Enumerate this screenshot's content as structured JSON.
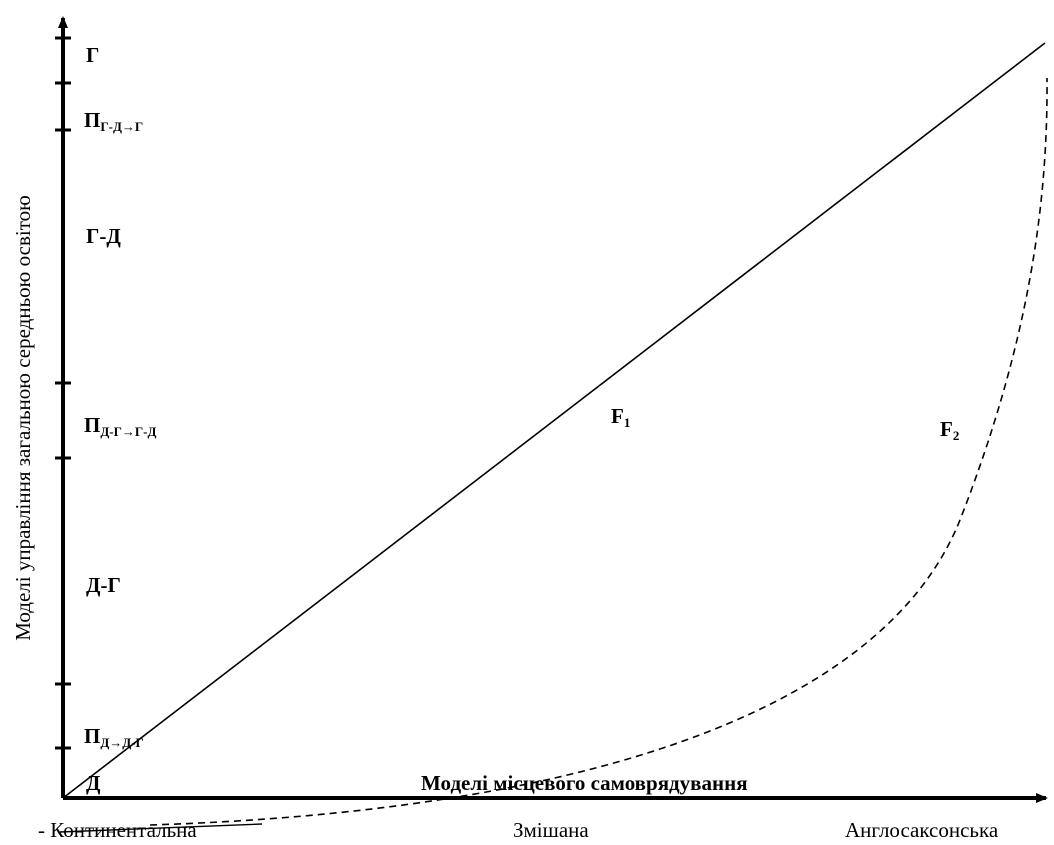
{
  "y_axis_title": "Моделі управління загальною середньою освітою",
  "x_axis_title": "Моделі місцевого самоврядування",
  "x_categories": [
    "- Континентальна",
    "Змішана",
    "Англосаксонська"
  ],
  "y_levels": [
    {
      "main": "Д",
      "sub": ""
    },
    {
      "main": "П",
      "sub": "Д→Д-Г"
    },
    {
      "main": "Д-Г",
      "sub": ""
    },
    {
      "main": "П",
      "sub": "Д-Г→Г-Д"
    },
    {
      "main": "Г-Д",
      "sub": ""
    },
    {
      "main": "П",
      "sub": "Г-Д→Г"
    },
    {
      "main": "Г",
      "sub": ""
    }
  ],
  "curves": [
    {
      "main": "F",
      "sub": "1",
      "style": "solid"
    },
    {
      "main": "F",
      "sub": "2",
      "style": "dashed"
    }
  ]
}
